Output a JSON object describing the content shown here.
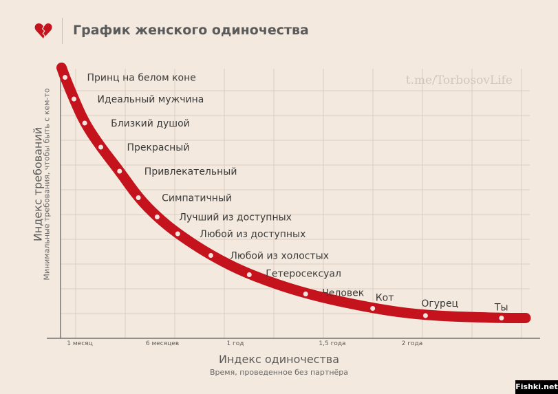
{
  "header": {
    "title": "График женского одиночества",
    "icon": "broken-heart-icon"
  },
  "watermark": "t.me/TorbosovLife",
  "corner_watermark": "Fishki.net",
  "colors": {
    "background": "#f3e9de",
    "curve": "#c5131d",
    "point": "#f5e5e0",
    "text": "#3a3a3a"
  },
  "chart_data": {
    "type": "line",
    "title": "График женского одиночества",
    "xlabel": "Индекс одиночества",
    "xlabel_sub": "Время, проведенное без партнёра",
    "ylabel": "Индекс требований",
    "ylabel_sub": "Минимальные требования, чтобы быть с кем-то",
    "x_ticks": [
      "1 месяц",
      "6 месяцев",
      "1 год",
      "1,5 года",
      "2 года"
    ],
    "grid": true,
    "points": [
      {
        "label": "Принц на белом коне",
        "x": 0.05,
        "y": 10.5
      },
      {
        "label": "Идеальный мужчина",
        "x": 0.15,
        "y": 9.6
      },
      {
        "label": "Близкий душой",
        "x": 0.27,
        "y": 8.6
      },
      {
        "label": "Прекрасный",
        "x": 0.45,
        "y": 7.6
      },
      {
        "label": "Привлекательный",
        "x": 0.66,
        "y": 6.6
      },
      {
        "label": "Симпатичный",
        "x": 0.87,
        "y": 5.5
      },
      {
        "label": "Лучший из доступных",
        "x": 1.08,
        "y": 4.7
      },
      {
        "label": "Любой из доступных",
        "x": 1.31,
        "y": 4.0
      },
      {
        "label": "Любой из холостых",
        "x": 1.68,
        "y": 3.1
      },
      {
        "label": "Гетеросексуал",
        "x": 2.11,
        "y": 2.3
      },
      {
        "label": "Человек",
        "x": 2.74,
        "y": 1.5
      },
      {
        "label": "Кот",
        "x": 3.49,
        "y": 0.9
      },
      {
        "label": "Огурец",
        "x": 4.08,
        "y": 0.6
      },
      {
        "label": "Ты",
        "x": 4.93,
        "y": 0.5
      }
    ]
  }
}
